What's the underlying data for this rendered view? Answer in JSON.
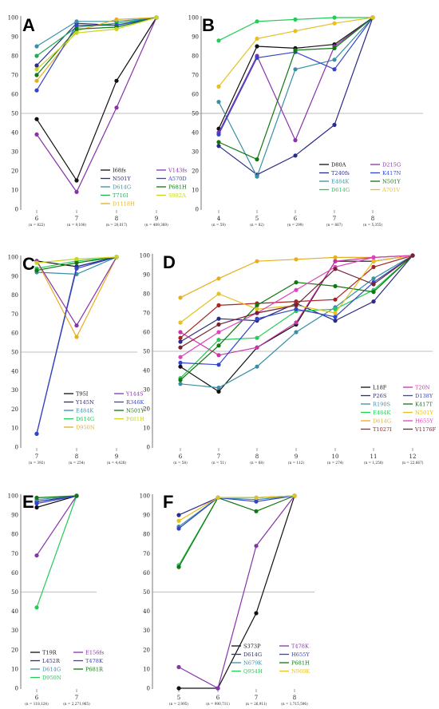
{
  "chart_data": [
    {
      "panel": "A",
      "type": "line",
      "x": [
        "6",
        "7",
        "8",
        "9"
      ],
      "n_labels": [
        "(n = 822)",
        "(n = 9,100)",
        "(n = 20,017)",
        "(n = 489,389)"
      ],
      "yticks": [
        0,
        10,
        20,
        30,
        40,
        50,
        60,
        70,
        80,
        90,
        100
      ],
      "ylim": [
        0,
        100
      ],
      "reference_line": 50,
      "series": [
        {
          "name": "I68fs",
          "color": "#111111",
          "values": [
            47,
            15,
            67,
            100
          ]
        },
        {
          "name": "N501Y",
          "color": "#2b2b88",
          "values": [
            75,
            97,
            96,
            100
          ]
        },
        {
          "name": "D614G",
          "color": "#3a8fa6",
          "values": [
            85,
            98,
            98,
            100
          ]
        },
        {
          "name": "T716I",
          "color": "#22aa55",
          "values": [
            80,
            95,
            97,
            100
          ]
        },
        {
          "name": "D1118H",
          "color": "#e5b020",
          "values": [
            67,
            93,
            99,
            100
          ]
        },
        {
          "name": "V143fs",
          "color": "#8833aa",
          "values": [
            39,
            9,
            53,
            100
          ]
        },
        {
          "name": "A570D",
          "color": "#3344cc",
          "values": [
            62,
            96,
            96,
            100
          ]
        },
        {
          "name": "P681H",
          "color": "#117711",
          "values": [
            70,
            94,
            95,
            100
          ]
        },
        {
          "name": "S982A",
          "color": "#c8d420",
          "values": [
            73,
            92,
            94,
            100
          ]
        }
      ]
    },
    {
      "panel": "B",
      "type": "line",
      "x": [
        "4",
        "5",
        "6",
        "7",
        "8"
      ],
      "n_labels": [
        "(n = 59)",
        "(n = 82)",
        "(n = 299)",
        "(n = 867)",
        "(n = 5,355)"
      ],
      "yticks": [
        0,
        10,
        20,
        30,
        40,
        50,
        60,
        70,
        80,
        90,
        100
      ],
      "ylim": [
        0,
        100
      ],
      "reference_line": 50,
      "series": [
        {
          "name": "D80A",
          "color": "#111111",
          "values": [
            42,
            85,
            84,
            86,
            100
          ]
        },
        {
          "name": "T240fs",
          "color": "#2b2b88",
          "values": [
            33,
            18,
            28,
            44,
            100
          ]
        },
        {
          "name": "E484K",
          "color": "#3a8fa6",
          "values": [
            56,
            17,
            73,
            78,
            100
          ]
        },
        {
          "name": "D614G",
          "color": "#22cc55",
          "values": [
            88,
            98,
            99,
            100,
            100
          ]
        },
        {
          "name": "D215G",
          "color": "#8833aa",
          "values": [
            40,
            80,
            36,
            85,
            100
          ]
        },
        {
          "name": "K417N",
          "color": "#3344cc",
          "values": [
            39,
            79,
            82,
            73,
            100
          ]
        },
        {
          "name": "N501Y",
          "color": "#117711",
          "values": [
            35,
            26,
            83,
            84,
            100
          ]
        },
        {
          "name": "A701V",
          "color": "#e5c020",
          "values": [
            64,
            89,
            93,
            97,
            100
          ]
        }
      ]
    },
    {
      "panel": "C",
      "type": "line",
      "x": [
        "7",
        "8",
        "9"
      ],
      "n_labels": [
        "(n = 392)",
        "(n = 254)",
        "(n = 4,428)"
      ],
      "yticks": [
        0,
        10,
        20,
        30,
        40,
        50,
        60,
        70,
        80,
        90,
        100
      ],
      "ylim": [
        0,
        100
      ],
      "reference_line": 50,
      "series": [
        {
          "name": "T95I",
          "color": "#111111",
          "values": [
            98,
            95,
            100
          ]
        },
        {
          "name": "Y145N",
          "color": "#2b2b88",
          "values": [
            7,
            95,
            100
          ]
        },
        {
          "name": "E484K",
          "color": "#3a8fa6",
          "values": [
            92,
            91,
            100
          ]
        },
        {
          "name": "D614G",
          "color": "#22cc55",
          "values": [
            94,
            98,
            100
          ]
        },
        {
          "name": "D950N",
          "color": "#e5b020",
          "values": [
            98,
            58,
            100
          ]
        },
        {
          "name": "Y144S",
          "color": "#8833aa",
          "values": [
            98,
            64,
            100
          ]
        },
        {
          "name": "R346K",
          "color": "#3344cc",
          "values": [
            7,
            94,
            100
          ]
        },
        {
          "name": "N501Y",
          "color": "#117711",
          "values": [
            93,
            97,
            100
          ]
        },
        {
          "name": "P681H",
          "color": "#c8d420",
          "values": [
            97,
            99,
            100
          ]
        }
      ]
    },
    {
      "panel": "D",
      "type": "line",
      "x": [
        "6",
        "7",
        "8",
        "9",
        "10",
        "11",
        "12"
      ],
      "n_labels": [
        "(n = 58)",
        "(n = 51)",
        "(n = 68)",
        "(n = 112)",
        "(n = 274)",
        "(n = 1,250)",
        "(n = 22,667)"
      ],
      "yticks": [
        0,
        10,
        20,
        30,
        40,
        50,
        60,
        70,
        80,
        90,
        100
      ],
      "ylim": [
        0,
        100
      ],
      "reference_line": 50,
      "series": [
        {
          "name": "L18F",
          "color": "#111111",
          "values": [
            42,
            29,
            52,
            64,
            97,
            97,
            100
          ]
        },
        {
          "name": "P26S",
          "color": "#2b2b88",
          "values": [
            55,
            67,
            66,
            75,
            66,
            76,
            100
          ]
        },
        {
          "name": "R190S",
          "color": "#3a8fa6",
          "values": [
            33,
            31,
            42,
            60,
            73,
            88,
            100
          ]
        },
        {
          "name": "E484K",
          "color": "#22cc55",
          "values": [
            36,
            56,
            57,
            71,
            72,
            82,
            100
          ]
        },
        {
          "name": "D614G",
          "color": "#e5b020",
          "values": [
            78,
            88,
            97,
            98,
            99,
            99,
            100
          ]
        },
        {
          "name": "T1027I",
          "color": "#aa2222",
          "values": [
            57,
            74,
            75,
            76,
            77,
            94,
            100
          ]
        },
        {
          "name": "T20N",
          "color": "#cc33aa",
          "values": [
            60,
            48,
            52,
            65,
            97,
            99,
            100
          ]
        },
        {
          "name": "D138Y",
          "color": "#3344cc",
          "values": [
            44,
            43,
            67,
            72,
            68,
            86,
            100
          ]
        },
        {
          "name": "K417T",
          "color": "#117711",
          "values": [
            35,
            53,
            74,
            86,
            84,
            81,
            100
          ]
        },
        {
          "name": "N501Y",
          "color": "#e5c020",
          "values": [
            65,
            80,
            72,
            74,
            70,
            97,
            100
          ]
        },
        {
          "name": "H655Y",
          "color": "#dd44bb",
          "values": [
            47,
            60,
            70,
            82,
            94,
            99,
            100
          ]
        },
        {
          "name": "V1176F",
          "color": "#772233",
          "values": [
            52,
            64,
            70,
            74,
            93,
            85,
            100
          ]
        }
      ]
    },
    {
      "panel": "E",
      "type": "line",
      "x": [
        "6",
        "7"
      ],
      "n_labels": [
        "(n = 118,124)",
        "(n = 2,271,965)"
      ],
      "yticks": [
        0,
        10,
        20,
        30,
        40,
        50,
        60,
        70,
        80,
        90,
        100
      ],
      "ylim": [
        0,
        100
      ],
      "reference_line": 50,
      "series": [
        {
          "name": "T19R",
          "color": "#111111",
          "values": [
            94,
            100
          ]
        },
        {
          "name": "L452R",
          "color": "#2b2b88",
          "values": [
            97,
            100
          ]
        },
        {
          "name": "D614G",
          "color": "#3a8fa6",
          "values": [
            98,
            100
          ]
        },
        {
          "name": "D950N",
          "color": "#22cc55",
          "values": [
            42,
            100
          ]
        },
        {
          "name": "E156fs",
          "color": "#8833aa",
          "values": [
            69,
            100
          ]
        },
        {
          "name": "T478K",
          "color": "#3344cc",
          "values": [
            96,
            100
          ]
        },
        {
          "name": "P681R",
          "color": "#117711",
          "values": [
            99,
            100
          ]
        }
      ]
    },
    {
      "panel": "F",
      "type": "line",
      "x": [
        "5",
        "6",
        "7",
        "8"
      ],
      "n_labels": [
        "(n = 2,995)",
        "(n = 990,711)",
        "(n = 26,911)",
        "(n = 1,715,596)"
      ],
      "yticks": [
        0,
        10,
        20,
        30,
        40,
        50,
        60,
        70,
        80,
        90,
        100
      ],
      "ylim": [
        0,
        100
      ],
      "reference_line": 50,
      "series": [
        {
          "name": "S373P",
          "color": "#111111",
          "values": [
            0,
            0,
            39,
            100
          ]
        },
        {
          "name": "D614G",
          "color": "#2b2b88",
          "values": [
            90,
            99,
            99,
            100
          ]
        },
        {
          "name": "N679K",
          "color": "#3a8fa6",
          "values": [
            84,
            99,
            98,
            100
          ]
        },
        {
          "name": "Q954H",
          "color": "#22cc55",
          "values": [
            64,
            99,
            99,
            100
          ]
        },
        {
          "name": "T478K",
          "color": "#8833aa",
          "values": [
            11,
            0,
            74,
            100
          ]
        },
        {
          "name": "H655Y",
          "color": "#3344cc",
          "values": [
            83,
            99,
            97,
            100
          ]
        },
        {
          "name": "P681H",
          "color": "#117711",
          "values": [
            63,
            99,
            92,
            100
          ]
        },
        {
          "name": "N969K",
          "color": "#e5c020",
          "values": [
            87,
            99,
            99,
            100
          ]
        }
      ]
    }
  ]
}
